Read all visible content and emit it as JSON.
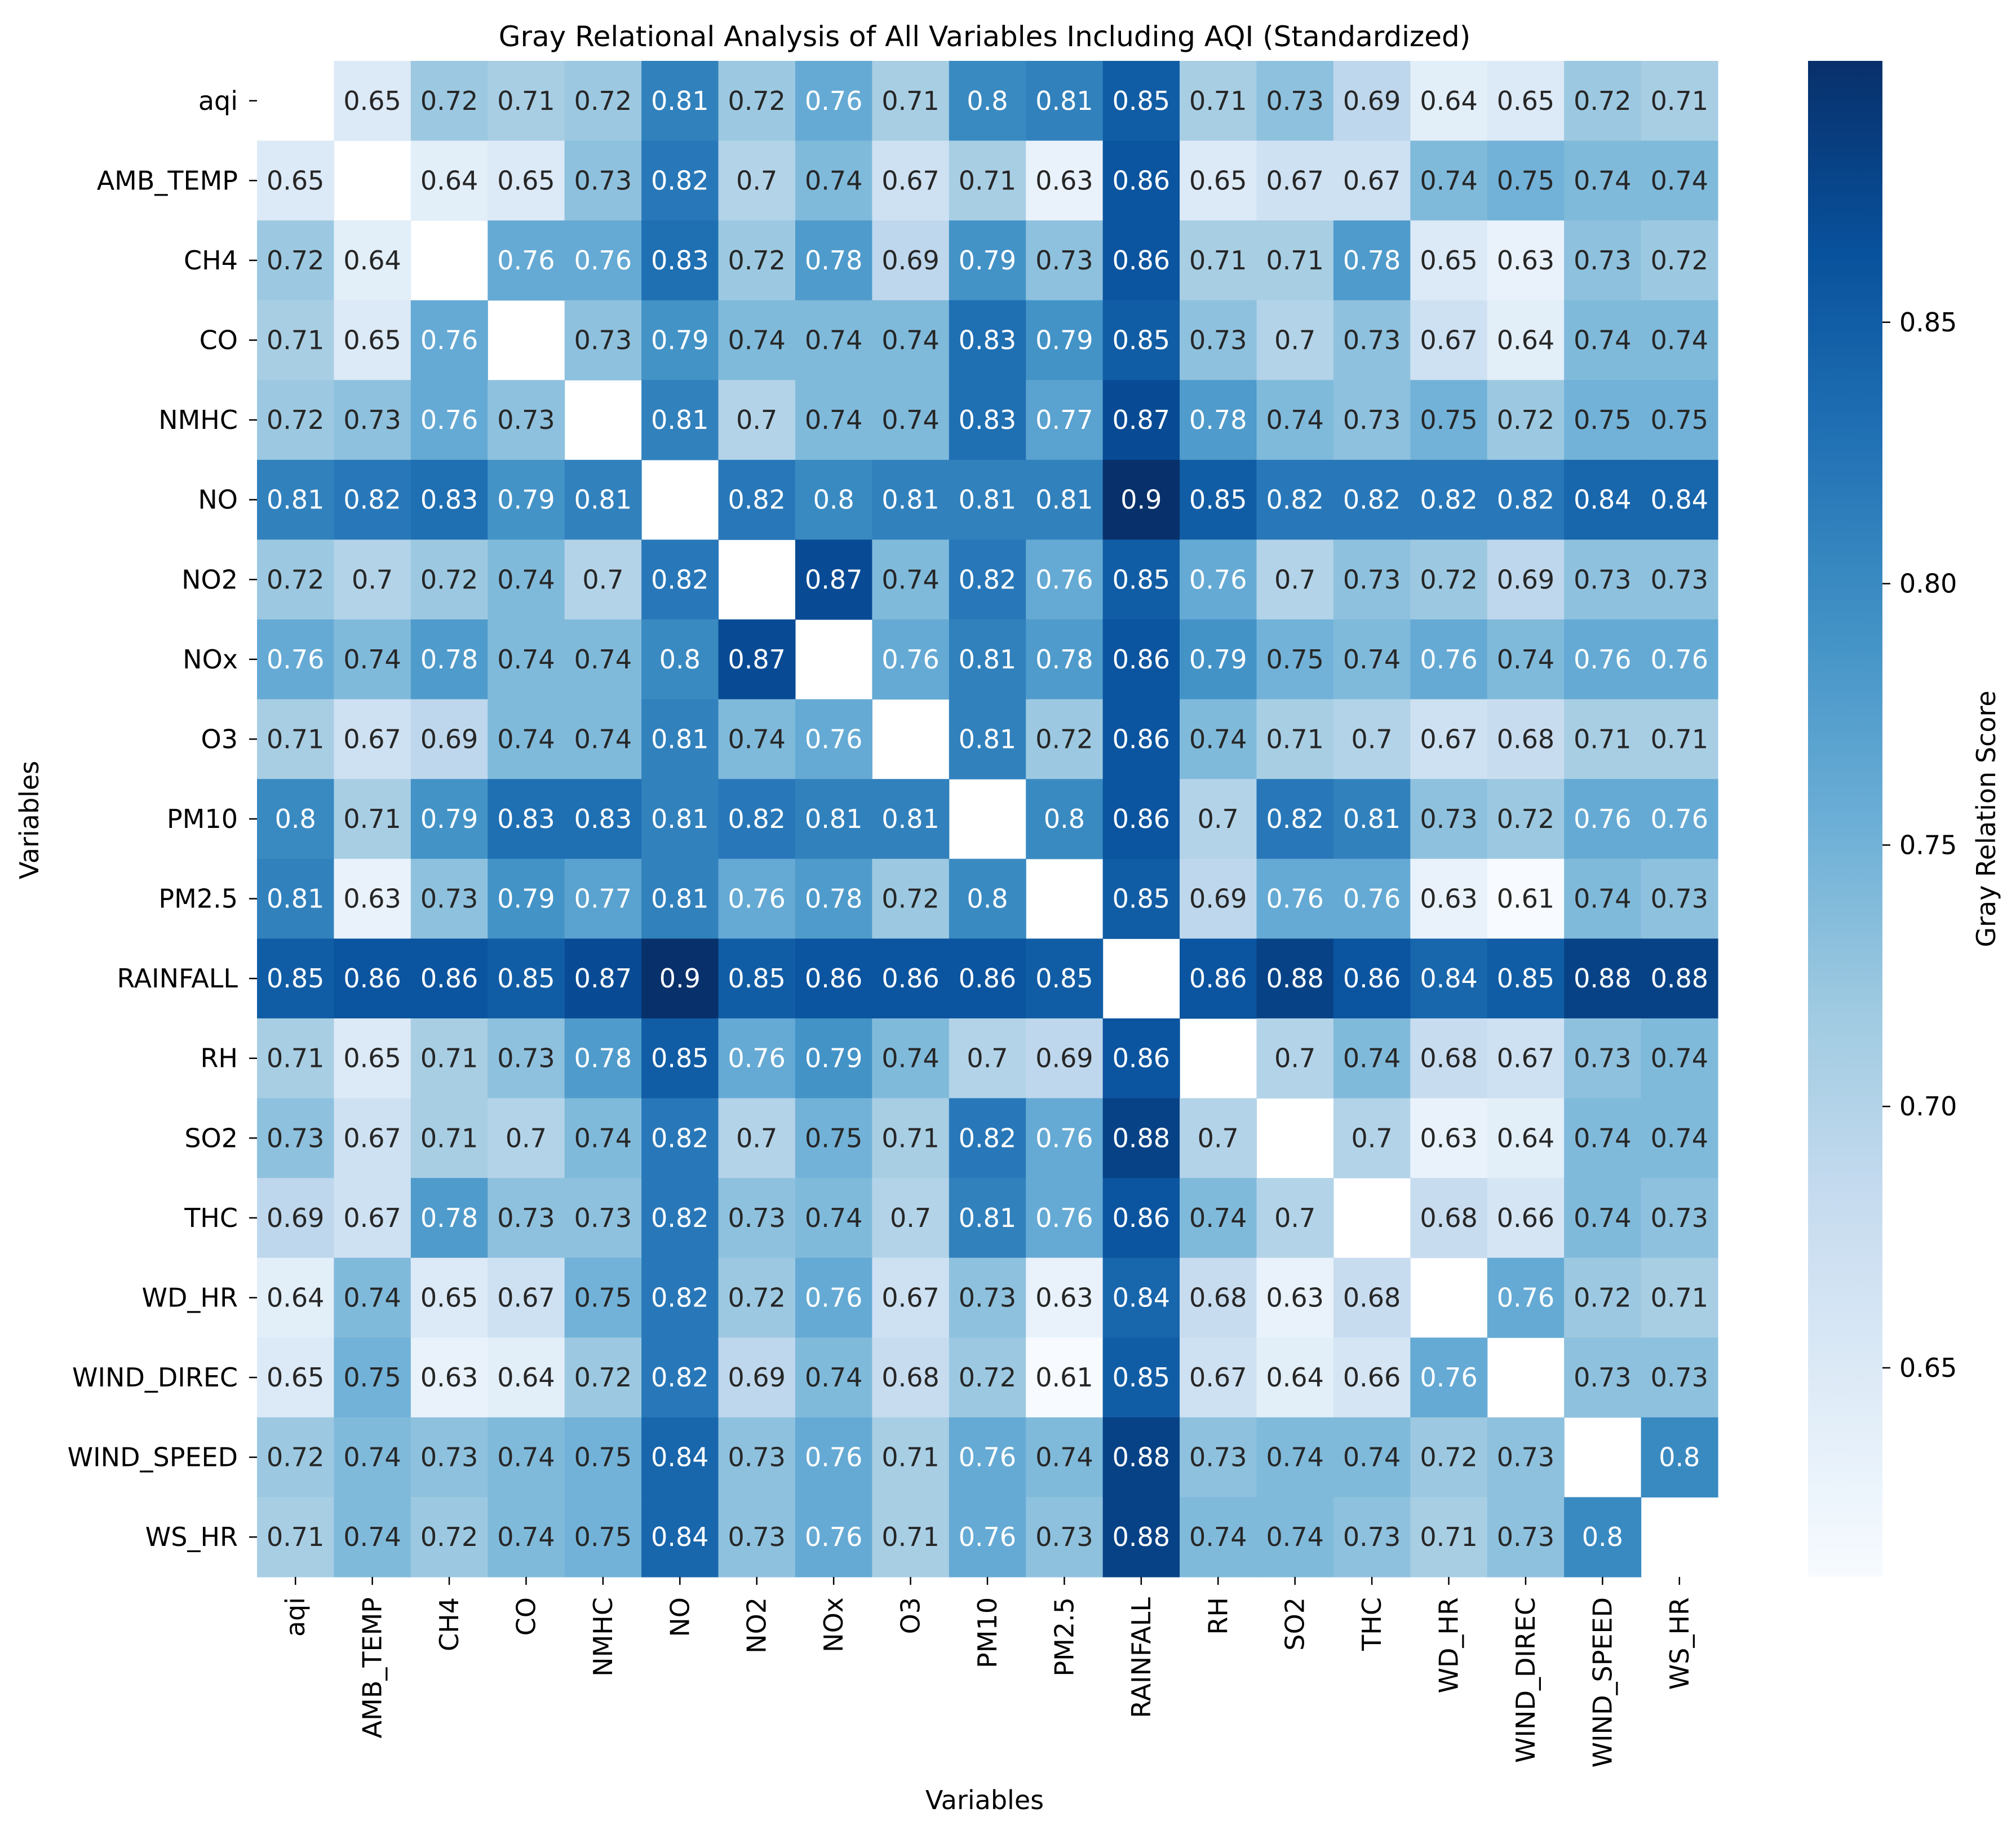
{
  "chart_data": {
    "type": "heatmap",
    "title": "Gray Relational Analysis of All Variables Including AQI (Standardized)",
    "xlabel": "Variables",
    "ylabel": "Variables",
    "categories": [
      "aqi",
      "AMB_TEMP",
      "CH4",
      "CO",
      "NMHC",
      "NO",
      "NO2",
      "NOx",
      "O3",
      "PM10",
      "PM2.5",
      "RAINFALL",
      "RH",
      "SO2",
      "THC",
      "WD_HR",
      "WIND_DIREC",
      "WIND_SPEED",
      "WS_HR"
    ],
    "values": [
      [
        null,
        "0.65",
        "0.72",
        "0.71",
        "0.72",
        "0.81",
        "0.72",
        "0.76",
        "0.71",
        "0.8",
        "0.81",
        "0.85",
        "0.71",
        "0.73",
        "0.69",
        "0.64",
        "0.65",
        "0.72",
        "0.71"
      ],
      [
        "0.65",
        null,
        "0.64",
        "0.65",
        "0.73",
        "0.82",
        "0.7",
        "0.74",
        "0.67",
        "0.71",
        "0.63",
        "0.86",
        "0.65",
        "0.67",
        "0.67",
        "0.74",
        "0.75",
        "0.74",
        "0.74"
      ],
      [
        "0.72",
        "0.64",
        null,
        "0.76",
        "0.76",
        "0.83",
        "0.72",
        "0.78",
        "0.69",
        "0.79",
        "0.73",
        "0.86",
        "0.71",
        "0.71",
        "0.78",
        "0.65",
        "0.63",
        "0.73",
        "0.72"
      ],
      [
        "0.71",
        "0.65",
        "0.76",
        null,
        "0.73",
        "0.79",
        "0.74",
        "0.74",
        "0.74",
        "0.83",
        "0.79",
        "0.85",
        "0.73",
        "0.7",
        "0.73",
        "0.67",
        "0.64",
        "0.74",
        "0.74"
      ],
      [
        "0.72",
        "0.73",
        "0.76",
        "0.73",
        null,
        "0.81",
        "0.7",
        "0.74",
        "0.74",
        "0.83",
        "0.77",
        "0.87",
        "0.78",
        "0.74",
        "0.73",
        "0.75",
        "0.72",
        "0.75",
        "0.75"
      ],
      [
        "0.81",
        "0.82",
        "0.83",
        "0.79",
        "0.81",
        null,
        "0.82",
        "0.8",
        "0.81",
        "0.81",
        "0.81",
        "0.9",
        "0.85",
        "0.82",
        "0.82",
        "0.82",
        "0.82",
        "0.84",
        "0.84"
      ],
      [
        "0.72",
        "0.7",
        "0.72",
        "0.74",
        "0.7",
        "0.82",
        null,
        "0.87",
        "0.74",
        "0.82",
        "0.76",
        "0.85",
        "0.76",
        "0.7",
        "0.73",
        "0.72",
        "0.69",
        "0.73",
        "0.73"
      ],
      [
        "0.76",
        "0.74",
        "0.78",
        "0.74",
        "0.74",
        "0.8",
        "0.87",
        null,
        "0.76",
        "0.81",
        "0.78",
        "0.86",
        "0.79",
        "0.75",
        "0.74",
        "0.76",
        "0.74",
        "0.76",
        "0.76"
      ],
      [
        "0.71",
        "0.67",
        "0.69",
        "0.74",
        "0.74",
        "0.81",
        "0.74",
        "0.76",
        null,
        "0.81",
        "0.72",
        "0.86",
        "0.74",
        "0.71",
        "0.7",
        "0.67",
        "0.68",
        "0.71",
        "0.71"
      ],
      [
        "0.8",
        "0.71",
        "0.79",
        "0.83",
        "0.83",
        "0.81",
        "0.82",
        "0.81",
        "0.81",
        null,
        "0.8",
        "0.86",
        "0.7",
        "0.82",
        "0.81",
        "0.73",
        "0.72",
        "0.76",
        "0.76"
      ],
      [
        "0.81",
        "0.63",
        "0.73",
        "0.79",
        "0.77",
        "0.81",
        "0.76",
        "0.78",
        "0.72",
        "0.8",
        null,
        "0.85",
        "0.69",
        "0.76",
        "0.76",
        "0.63",
        "0.61",
        "0.74",
        "0.73"
      ],
      [
        "0.85",
        "0.86",
        "0.86",
        "0.85",
        "0.87",
        "0.9",
        "0.85",
        "0.86",
        "0.86",
        "0.86",
        "0.85",
        null,
        "0.86",
        "0.88",
        "0.86",
        "0.84",
        "0.85",
        "0.88",
        "0.88"
      ],
      [
        "0.71",
        "0.65",
        "0.71",
        "0.73",
        "0.78",
        "0.85",
        "0.76",
        "0.79",
        "0.74",
        "0.7",
        "0.69",
        "0.86",
        null,
        "0.7",
        "0.74",
        "0.68",
        "0.67",
        "0.73",
        "0.74"
      ],
      [
        "0.73",
        "0.67",
        "0.71",
        "0.7",
        "0.74",
        "0.82",
        "0.7",
        "0.75",
        "0.71",
        "0.82",
        "0.76",
        "0.88",
        "0.7",
        null,
        "0.7",
        "0.63",
        "0.64",
        "0.74",
        "0.74"
      ],
      [
        "0.69",
        "0.67",
        "0.78",
        "0.73",
        "0.73",
        "0.82",
        "0.73",
        "0.74",
        "0.7",
        "0.81",
        "0.76",
        "0.86",
        "0.74",
        "0.7",
        null,
        "0.68",
        "0.66",
        "0.74",
        "0.73"
      ],
      [
        "0.64",
        "0.74",
        "0.65",
        "0.67",
        "0.75",
        "0.82",
        "0.72",
        "0.76",
        "0.67",
        "0.73",
        "0.63",
        "0.84",
        "0.68",
        "0.63",
        "0.68",
        null,
        "0.76",
        "0.72",
        "0.71"
      ],
      [
        "0.65",
        "0.75",
        "0.63",
        "0.64",
        "0.72",
        "0.82",
        "0.69",
        "0.74",
        "0.68",
        "0.72",
        "0.61",
        "0.85",
        "0.67",
        "0.64",
        "0.66",
        "0.76",
        null,
        "0.73",
        "0.73"
      ],
      [
        "0.72",
        "0.74",
        "0.73",
        "0.74",
        "0.75",
        "0.84",
        "0.73",
        "0.76",
        "0.71",
        "0.76",
        "0.74",
        "0.88",
        "0.73",
        "0.74",
        "0.74",
        "0.72",
        "0.73",
        null,
        "0.8"
      ],
      [
        "0.71",
        "0.74",
        "0.72",
        "0.74",
        "0.75",
        "0.84",
        "0.73",
        "0.76",
        "0.71",
        "0.76",
        "0.73",
        "0.88",
        "0.74",
        "0.74",
        "0.73",
        "0.71",
        "0.73",
        "0.8",
        null
      ]
    ],
    "colorbar": {
      "label": "Gray Relation Score",
      "range": [
        0.61,
        0.9
      ],
      "ticks": [
        "0.65",
        "0.70",
        "0.75",
        "0.80",
        "0.85"
      ],
      "colormap": "Blues"
    }
  }
}
